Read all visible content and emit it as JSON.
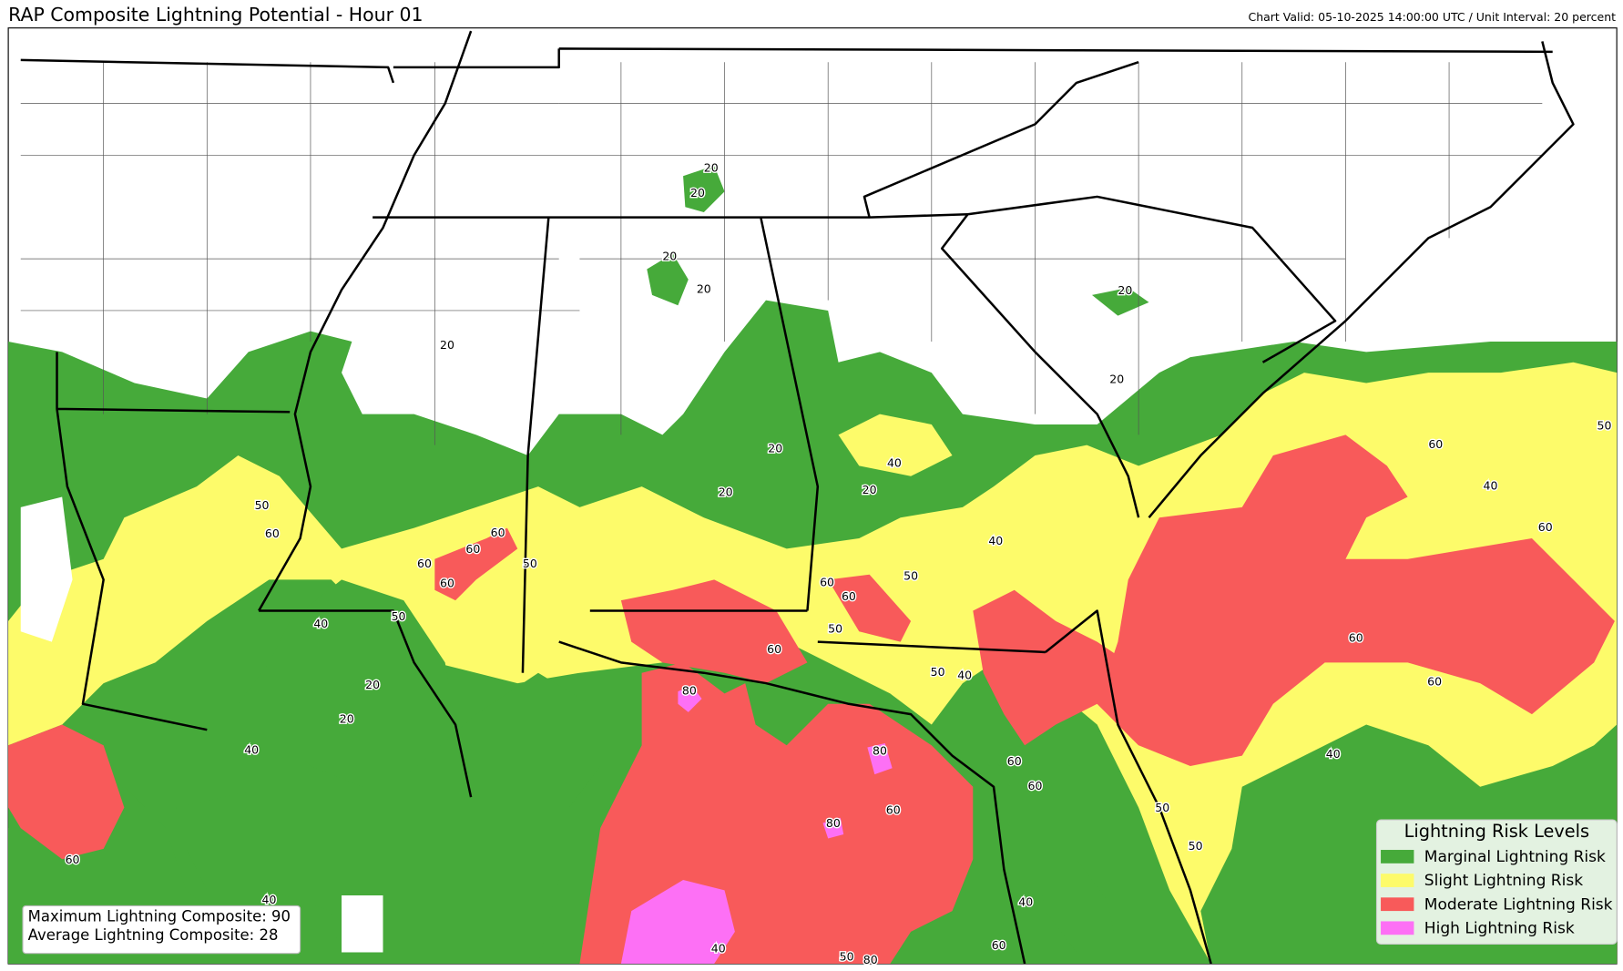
{
  "header": {
    "title": "RAP Composite Lightning Potential - Hour 01",
    "info": "Chart Valid: 05-10-2025 14:00:00 UTC / Unit Interval: 20 percent"
  },
  "legend": {
    "title": "Lightning Risk Levels",
    "items": [
      {
        "label": "Marginal Lightning Risk",
        "color": "#46aa3a"
      },
      {
        "label": "Slight Lightning Risk",
        "color": "#fdfb6a"
      },
      {
        "label": "Moderate Lightning Risk",
        "color": "#f85a5a"
      },
      {
        "label": "High Lightning Risk",
        "color": "#fd70f5"
      }
    ]
  },
  "stats": {
    "max": "Maximum Lightning Composite: 90",
    "avg": "Average Lightning Composite: 28"
  },
  "contour_labels": [
    "20",
    "20",
    "20",
    "20",
    "20",
    "20",
    "20",
    "20",
    "20",
    "20",
    "40",
    "50",
    "60",
    "60",
    "60",
    "60",
    "60",
    "50",
    "50",
    "40",
    "40",
    "50",
    "60",
    "60",
    "50",
    "60",
    "50",
    "40",
    "60",
    "40",
    "50",
    "60",
    "60",
    "60",
    "40",
    "80",
    "20",
    "20",
    "40",
    "80",
    "60",
    "80",
    "60",
    "60",
    "50",
    "50",
    "60",
    "40",
    "60",
    "50",
    "40",
    "80",
    "40"
  ]
}
